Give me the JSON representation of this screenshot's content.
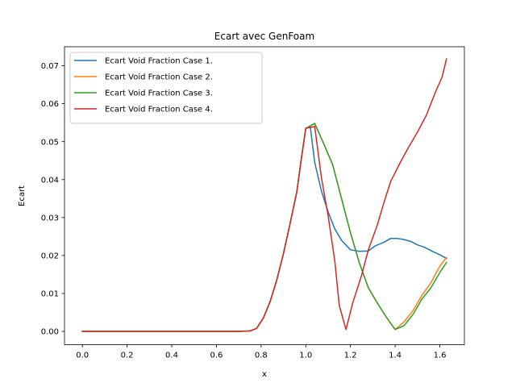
{
  "chart_data": {
    "type": "line",
    "title": "Ecart avec GenFoam",
    "xlabel": "x",
    "ylabel": "Ecart",
    "xlim": [
      -0.08,
      1.71
    ],
    "ylim": [
      -0.0035,
      0.075
    ],
    "xticks": [
      0.0,
      0.2,
      0.4,
      0.6,
      0.8,
      1.0,
      1.2,
      1.4,
      1.6
    ],
    "xtick_labels": [
      "0.0",
      "0.2",
      "0.4",
      "0.6",
      "0.8",
      "1.0",
      "1.2",
      "1.4",
      "1.6"
    ],
    "yticks": [
      0.0,
      0.01,
      0.02,
      0.03,
      0.04,
      0.05,
      0.06,
      0.07
    ],
    "ytick_labels": [
      "0.00",
      "0.01",
      "0.02",
      "0.03",
      "0.04",
      "0.05",
      "0.06",
      "0.07"
    ],
    "grid": false,
    "legend_position": "upper-left",
    "series": [
      {
        "name": "Ecart Void Fraction Case 1.",
        "color": "#1f77b4",
        "x": [
          0.0,
          0.1,
          0.2,
          0.3,
          0.4,
          0.5,
          0.6,
          0.7,
          0.75,
          0.78,
          0.81,
          0.84,
          0.87,
          0.9,
          0.93,
          0.96,
          0.98,
          1.0,
          1.02,
          1.04,
          1.07,
          1.1,
          1.13,
          1.16,
          1.2,
          1.24,
          1.28,
          1.31,
          1.35,
          1.38,
          1.41,
          1.44,
          1.47,
          1.5,
          1.53,
          1.57,
          1.6,
          1.63
        ],
        "y": [
          0.0,
          0.0,
          0.0,
          0.0,
          0.0,
          0.0,
          0.0,
          0.0,
          0.0001,
          0.0008,
          0.0035,
          0.0078,
          0.0135,
          0.0205,
          0.0285,
          0.0368,
          0.0455,
          0.0535,
          0.054,
          0.0445,
          0.037,
          0.0315,
          0.027,
          0.024,
          0.0215,
          0.0211,
          0.0212,
          0.0225,
          0.0235,
          0.0245,
          0.0245,
          0.0242,
          0.0237,
          0.0228,
          0.0222,
          0.021,
          0.0202,
          0.0192
        ]
      },
      {
        "name": "Ecart Void Fraction Case 2.",
        "color": "#ff7f0e",
        "x": [
          0.0,
          0.1,
          0.2,
          0.3,
          0.4,
          0.5,
          0.6,
          0.7,
          0.75,
          0.78,
          0.81,
          0.84,
          0.87,
          0.9,
          0.93,
          0.96,
          0.98,
          1.0,
          1.04,
          1.08,
          1.12,
          1.16,
          1.2,
          1.24,
          1.28,
          1.32,
          1.36,
          1.4,
          1.44,
          1.48,
          1.52,
          1.56,
          1.6,
          1.63
        ],
        "y": [
          0.0,
          0.0,
          0.0,
          0.0,
          0.0,
          0.0,
          0.0,
          0.0,
          0.0001,
          0.0008,
          0.0035,
          0.0078,
          0.0135,
          0.0205,
          0.0285,
          0.0368,
          0.0455,
          0.0535,
          0.0548,
          0.0495,
          0.044,
          0.035,
          0.026,
          0.018,
          0.0115,
          0.0075,
          0.0038,
          0.0005,
          0.0025,
          0.0055,
          0.0095,
          0.0128,
          0.0172,
          0.0195
        ]
      },
      {
        "name": "Ecart Void Fraction Case 3.",
        "color": "#2ca02c",
        "x": [
          0.0,
          0.1,
          0.2,
          0.3,
          0.4,
          0.5,
          0.6,
          0.7,
          0.75,
          0.78,
          0.81,
          0.84,
          0.87,
          0.9,
          0.93,
          0.96,
          0.98,
          1.0,
          1.04,
          1.08,
          1.12,
          1.16,
          1.2,
          1.24,
          1.28,
          1.32,
          1.36,
          1.4,
          1.44,
          1.48,
          1.52,
          1.56,
          1.6,
          1.63
        ],
        "y": [
          0.0,
          0.0,
          0.0,
          0.0,
          0.0,
          0.0,
          0.0,
          0.0,
          0.0001,
          0.0008,
          0.0035,
          0.0078,
          0.0135,
          0.0205,
          0.0285,
          0.0368,
          0.0455,
          0.0535,
          0.0548,
          0.0495,
          0.044,
          0.035,
          0.026,
          0.018,
          0.0115,
          0.0075,
          0.0038,
          0.0005,
          0.0015,
          0.0045,
          0.0085,
          0.0115,
          0.0155,
          0.0182
        ]
      },
      {
        "name": "Ecart Void Fraction Case 4.",
        "color": "#d62728",
        "x": [
          0.0,
          0.1,
          0.2,
          0.3,
          0.4,
          0.5,
          0.6,
          0.7,
          0.75,
          0.78,
          0.81,
          0.84,
          0.87,
          0.9,
          0.93,
          0.96,
          0.98,
          1.0,
          1.04,
          1.07,
          1.1,
          1.13,
          1.15,
          1.18,
          1.21,
          1.25,
          1.28,
          1.32,
          1.35,
          1.38,
          1.42,
          1.46,
          1.5,
          1.54,
          1.58,
          1.61,
          1.63
        ],
        "y": [
          0.0,
          0.0,
          0.0,
          0.0,
          0.0,
          0.0,
          0.0,
          0.0,
          0.0001,
          0.0008,
          0.0035,
          0.0078,
          0.0135,
          0.0205,
          0.0285,
          0.0368,
          0.0455,
          0.0535,
          0.054,
          0.0405,
          0.0305,
          0.0185,
          0.0068,
          0.0005,
          0.0075,
          0.0148,
          0.0215,
          0.028,
          0.034,
          0.0395,
          0.0442,
          0.0485,
          0.0525,
          0.057,
          0.063,
          0.067,
          0.0718
        ]
      }
    ]
  }
}
